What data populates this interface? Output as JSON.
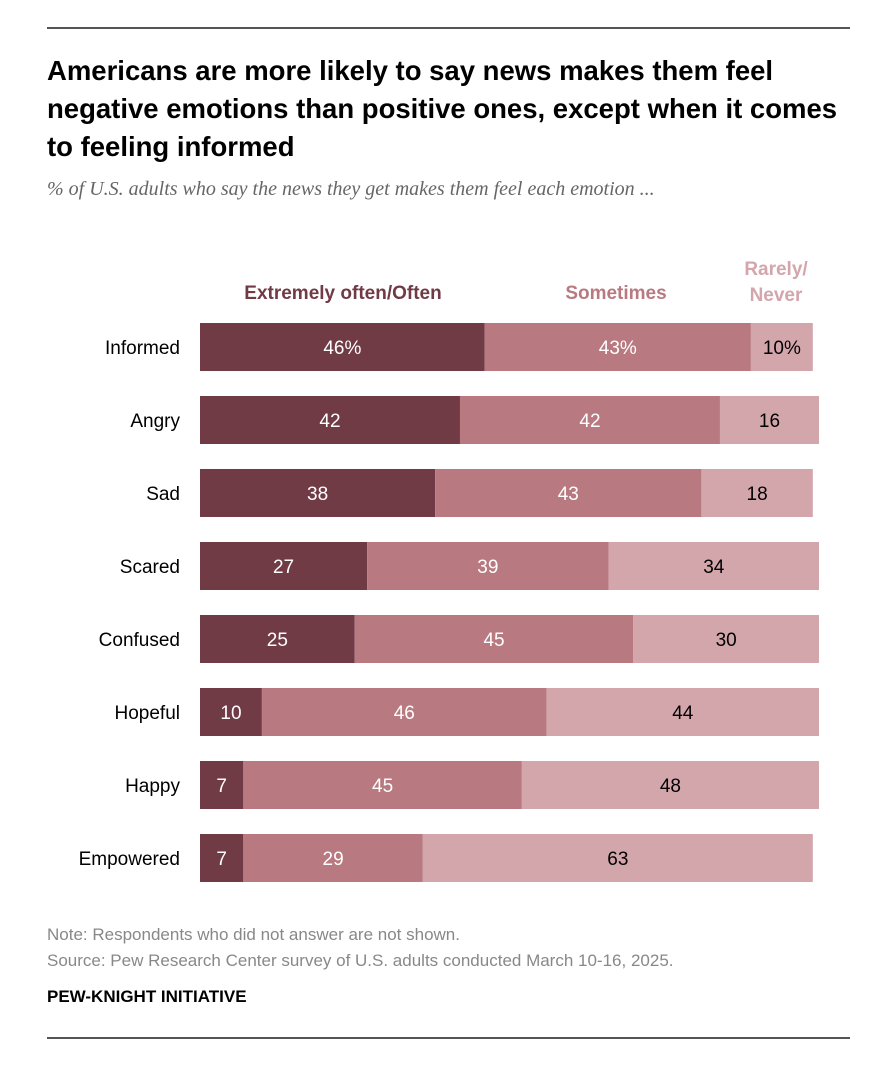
{
  "title": "Americans are more likely to say news makes them feel negative emotions than positive ones, except when it comes to feeling informed",
  "subtitle": "% of U.S. adults who say the news they get makes them feel each emotion ...",
  "note": "Note: Respondents who did not answer are not shown.",
  "source": "Source: Pew Research Center survey of U.S. adults conducted March 10-16, 2025.",
  "brand": "PEW-KNIGHT INITIATIVE",
  "chart_data": {
    "type": "bar",
    "orientation": "horizontal-stacked",
    "categories": [
      "Informed",
      "Angry",
      "Sad",
      "Scared",
      "Confused",
      "Hopeful",
      "Happy",
      "Empowered"
    ],
    "series": [
      {
        "name": "Extremely often/Often",
        "legend_lines": [
          "Extremely often/Often"
        ],
        "color": "#713b46",
        "text_color": "#ffffff",
        "values": [
          46,
          42,
          38,
          27,
          25,
          10,
          7,
          7
        ]
      },
      {
        "name": "Sometimes",
        "legend_lines": [
          "Sometimes"
        ],
        "color": "#b87a80",
        "text_color": "#ffffff",
        "values": [
          43,
          42,
          43,
          39,
          45,
          46,
          45,
          29
        ]
      },
      {
        "name": "Rarely/Never",
        "legend_lines": [
          "Rarely/",
          "Never"
        ],
        "color": "#d3a6ac",
        "text_color": "#000000",
        "values": [
          10,
          16,
          18,
          34,
          30,
          44,
          48,
          63
        ]
      }
    ],
    "first_row_suffix": "%",
    "xlim": [
      0,
      100
    ],
    "legend": "top"
  }
}
